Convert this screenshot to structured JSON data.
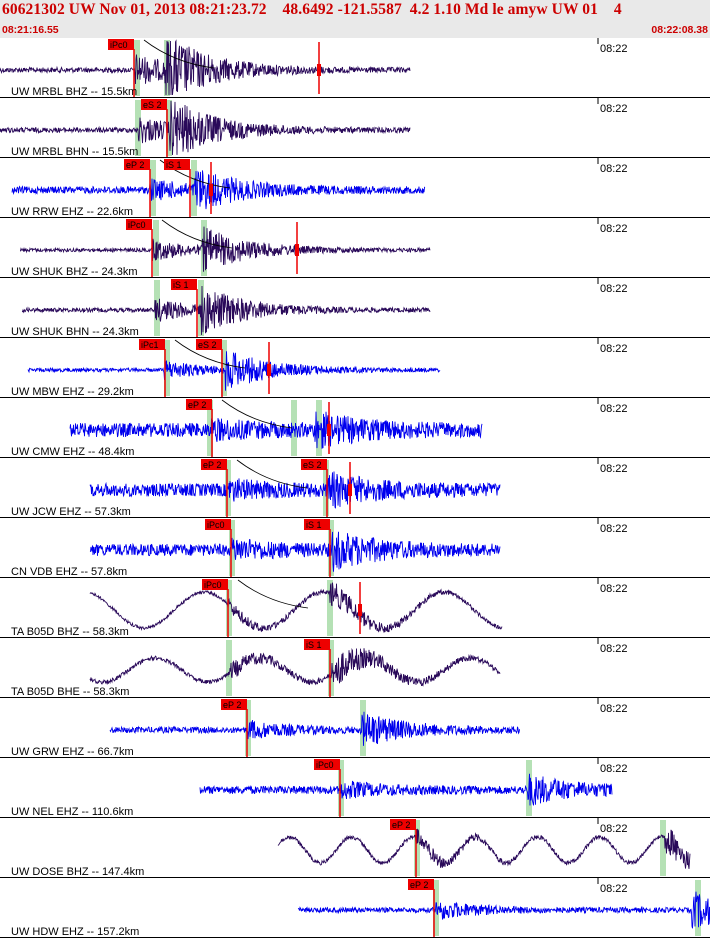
{
  "header": {
    "title": "60621302 UW Nov 01, 2013 08:21:23.72    48.6492 -121.5587  4.2 1.10 Md le amyw UW 01    4",
    "time_start": "08:21:16.55",
    "time_end": "08:22:08.38"
  },
  "colors": {
    "header_bg": "#e9e9e9",
    "header_text": "#cc0000",
    "trace_blue": "#0000ee",
    "trace_purple": "#2a0a5a",
    "pick_box": "#ee0000",
    "pick_band": "#a8dca8",
    "marker_red": "#ee0000"
  },
  "traces": [
    {
      "label": "UW MRBL BHZ -- 15.5km",
      "clock": "08:22",
      "color": "purple",
      "style": "burst",
      "start": 0,
      "end": 410,
      "onset": 135,
      "sonset": 165,
      "amp": 30,
      "noise": 2.5,
      "picks": [
        {
          "text": "iPc0",
          "x": 134
        }
      ],
      "bands": [
        136,
        166
      ],
      "marker": 319,
      "curve": true
    },
    {
      "label": "UW MRBL BHN -- 15.5km",
      "clock": "08:22",
      "color": "purple",
      "style": "burst",
      "start": 0,
      "end": 410,
      "onset": 138,
      "sonset": 170,
      "amp": 26,
      "noise": 2.5,
      "picks": [
        {
          "text": "eS 2",
          "x": 167
        }
      ],
      "bands": [
        137,
        168
      ]
    },
    {
      "label": "UW RRW EHZ -- 22.6km",
      "clock": "08:22",
      "color": "blue",
      "style": "burst",
      "start": 12,
      "end": 425,
      "onset": 150,
      "sonset": 195,
      "amp": 18,
      "noise": 3.5,
      "picks": [
        {
          "text": "eP 2",
          "x": 150
        },
        {
          "text": "iS 1",
          "x": 190
        }
      ],
      "bands": [
        152,
        193
      ],
      "marker": 211,
      "curve": true
    },
    {
      "label": "UW SHUK BHZ -- 24.3km",
      "clock": "08:22",
      "color": "purple",
      "style": "burst",
      "start": 20,
      "end": 430,
      "onset": 152,
      "sonset": 202,
      "amp": 20,
      "noise": 1.8,
      "picks": [
        {
          "text": "iPc0",
          "x": 152
        }
      ],
      "bands": [
        155,
        203
      ],
      "marker": 297,
      "curve": true
    },
    {
      "label": "UW SHUK BHN -- 24.3km",
      "clock": "08:22",
      "color": "purple",
      "style": "burst",
      "start": 22,
      "end": 430,
      "onset": 155,
      "sonset": 200,
      "amp": 22,
      "noise": 2,
      "picks": [
        {
          "text": "iS 1",
          "x": 197
        }
      ],
      "bands": [
        156,
        200
      ]
    },
    {
      "label": "UW MBW EHZ -- 29.2km",
      "clock": "08:22",
      "color": "blue",
      "style": "burst",
      "start": 28,
      "end": 440,
      "onset": 164,
      "sonset": 225,
      "amp": 18,
      "noise": 1.8,
      "picks": [
        {
          "text": "iPc1",
          "x": 165
        },
        {
          "text": "eS 2",
          "x": 222
        }
      ],
      "bands": [
        166,
        223
      ],
      "marker": 269,
      "curve": true
    },
    {
      "label": "UW CMW EHZ -- 48.4km",
      "clock": "08:22",
      "color": "blue",
      "style": "noisy",
      "start": 70,
      "end": 482,
      "onset": 210,
      "sonset": 315,
      "amp": 14,
      "noise": 7,
      "picks": [
        {
          "text": "eP 2",
          "x": 212
        }
      ],
      "bands": [
        209,
        293,
        318
      ],
      "marker": 329,
      "curve": true
    },
    {
      "label": "UW JCW EHZ -- 57.3km",
      "clock": "08:22",
      "color": "blue",
      "style": "noisy",
      "start": 90,
      "end": 500,
      "onset": 228,
      "sonset": 328,
      "amp": 14,
      "noise": 6.5,
      "picks": [
        {
          "text": "eP 2",
          "x": 227
        },
        {
          "text": "eS 2",
          "x": 327
        }
      ],
      "bands": [
        227,
        325
      ],
      "marker": 350,
      "curve": true
    },
    {
      "label": "CN VDB EHZ -- 57.8km",
      "clock": "08:22",
      "color": "blue",
      "style": "noisy",
      "start": 90,
      "end": 500,
      "onset": 232,
      "sonset": 332,
      "amp": 16,
      "noise": 6,
      "picks": [
        {
          "text": "iPc0",
          "x": 231
        },
        {
          "text": "iS 1",
          "x": 330
        }
      ],
      "bands": [
        231,
        330
      ]
    },
    {
      "label": "TA B05D BHZ -- 58.3km",
      "clock": "08:22",
      "color": "purple",
      "style": "wave",
      "start": 90,
      "end": 502,
      "onset": 228,
      "sonset": 330,
      "amp": 12,
      "noise": 1.5,
      "waveAmp": 18,
      "waveLen": 120,
      "phase": 0.3,
      "picks": [
        {
          "text": "iPc0",
          "x": 228
        }
      ],
      "bands": [
        228,
        329
      ],
      "marker": 360,
      "curve": true
    },
    {
      "label": "TA B05D BHE -- 58.3km",
      "clock": "08:22",
      "color": "purple",
      "style": "wave",
      "start": 90,
      "end": 500,
      "onset": 230,
      "sonset": 332,
      "amp": 16,
      "noise": 2,
      "waveAmp": 12,
      "waveLen": 105,
      "phase": 1.7,
      "picks": [
        {
          "text": "iS 1",
          "x": 330
        }
      ],
      "bands": [
        228,
        330
      ]
    },
    {
      "label": "UW GRW EHZ -- 66.7km",
      "clock": "08:22",
      "color": "blue",
      "style": "noisy",
      "start": 110,
      "end": 520,
      "onset": 248,
      "sonset": 362,
      "amp": 16,
      "noise": 3,
      "picks": [
        {
          "text": "eP 2",
          "x": 247
        }
      ],
      "bands": [
        247,
        362
      ]
    },
    {
      "label": "UW NEL EHZ -- 110.6km",
      "clock": "08:22",
      "color": "blue",
      "style": "noisy",
      "start": 200,
      "end": 612,
      "onset": 340,
      "sonset": 528,
      "amp": 14,
      "noise": 4,
      "picks": [
        {
          "text": "iPc0",
          "x": 340
        }
      ],
      "bands": [
        340,
        528
      ]
    },
    {
      "label": "UW DOSE BHZ -- 147.4km",
      "clock": "08:22",
      "color": "purple",
      "style": "wave",
      "start": 278,
      "end": 690,
      "onset": 416,
      "sonset": 665,
      "amp": 14,
      "noise": 2,
      "waveAmp": 13,
      "waveLen": 62,
      "phase": 0.5,
      "picks": [
        {
          "text": "eP 2",
          "x": 416
        }
      ],
      "bands": [
        416,
        662
      ]
    },
    {
      "label": "UW HDW EHZ -- 157.2km",
      "clock": "08:22",
      "color": "blue",
      "style": "noisy",
      "start": 298,
      "end": 710,
      "onset": 436,
      "sonset": 692,
      "amp": 18,
      "noise": 2.5,
      "picks": [
        {
          "text": "eP 2",
          "x": 434
        }
      ],
      "bands": [
        435,
        697
      ]
    }
  ]
}
